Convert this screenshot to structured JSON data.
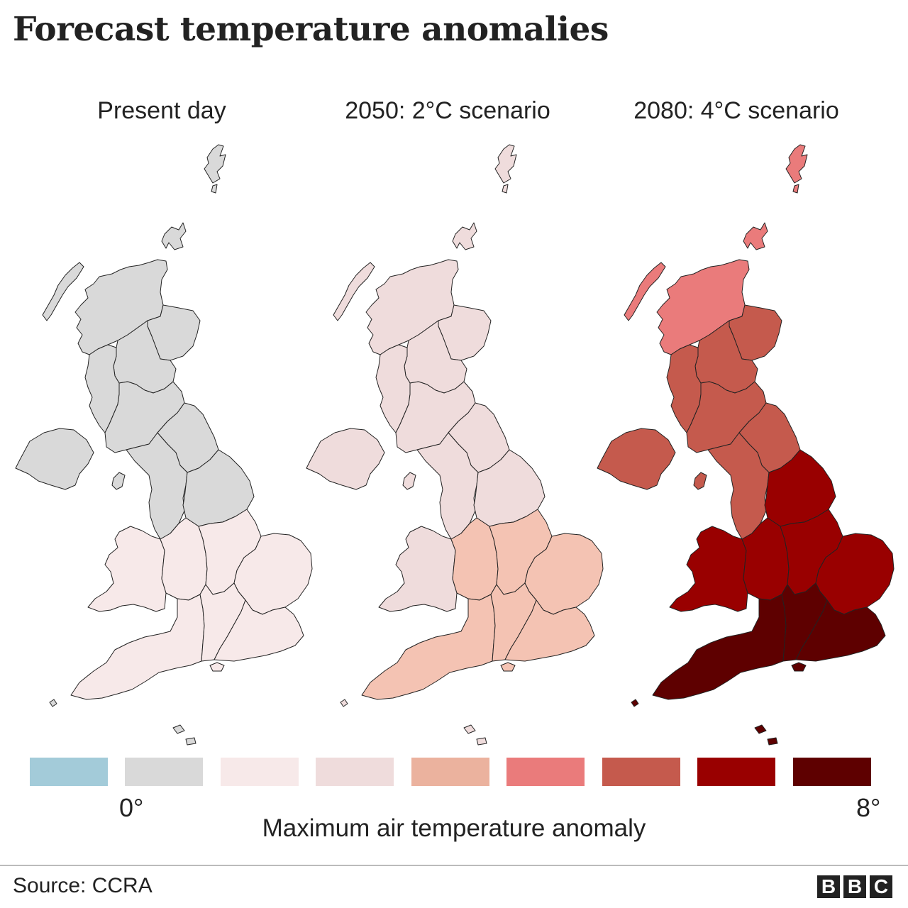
{
  "title": "Forecast temperature anomalies",
  "maps": [
    {
      "label": "Present day",
      "region_colors": {
        "shetland": "#d9d9d9",
        "orkney": "#d9d9d9",
        "hebrides": "#d9d9d9",
        "highlands": "#d9d9d9",
        "ne_scotland": "#d9d9d9",
        "e_scotland": "#d9d9d9",
        "w_scotland": "#d9d9d9",
        "s_scotland": "#d9d9d9",
        "n_ireland": "#d9d9d9",
        "isle_of_man": "#d9d9d9",
        "ne_england": "#d9d9d9",
        "nw_england": "#d9d9d9",
        "yorkshire": "#d9d9d9",
        "wales": "#f7e9e9",
        "w_midlands": "#f7e9e9",
        "e_midlands": "#f7e9e9",
        "east_england": "#f7e9e9",
        "sw_england": "#f7e9e9",
        "s_central": "#f7e9e9",
        "se_england": "#f7e9e9",
        "isle_of_wight": "#f7e9e9",
        "scilly": "#d9d9d9",
        "channel_islands": "#d9d9d9"
      }
    },
    {
      "label": "2050: 2°C scenario",
      "region_colors": {
        "shetland": "#efdcdc",
        "orkney": "#efdcdc",
        "hebrides": "#efdcdc",
        "highlands": "#efdcdc",
        "ne_scotland": "#efdcdc",
        "e_scotland": "#efdcdc",
        "w_scotland": "#efdcdc",
        "s_scotland": "#efdcdc",
        "n_ireland": "#efdcdc",
        "isle_of_man": "#efdcdc",
        "ne_england": "#efdcdc",
        "nw_england": "#efdcdc",
        "yorkshire": "#efdcdc",
        "wales": "#efdcdc",
        "w_midlands": "#f4c3b3",
        "e_midlands": "#f4c3b3",
        "east_england": "#f4c3b3",
        "sw_england": "#f4c3b3",
        "s_central": "#f4c3b3",
        "se_england": "#f4c3b3",
        "isle_of_wight": "#f4c3b3",
        "scilly": "#efdcdc",
        "channel_islands": "#efdcdc"
      }
    },
    {
      "label": "2080: 4°C scenario",
      "region_colors": {
        "shetland": "#ea7b7b",
        "orkney": "#ea7b7b",
        "hebrides": "#ea7b7b",
        "highlands": "#ea7b7b",
        "ne_scotland": "#c55a4d",
        "e_scotland": "#c55a4d",
        "w_scotland": "#c55a4d",
        "s_scotland": "#c55a4d",
        "n_ireland": "#c55a4d",
        "isle_of_man": "#c55a4d",
        "ne_england": "#c55a4d",
        "nw_england": "#c55a4d",
        "yorkshire": "#990000",
        "wales": "#990000",
        "w_midlands": "#990000",
        "e_midlands": "#990000",
        "east_england": "#990000",
        "sw_england": "#5e0000",
        "s_central": "#5e0000",
        "se_england": "#5e0000",
        "isle_of_wight": "#5e0000",
        "scilly": "#5e0000",
        "channel_islands": "#5e0000"
      }
    }
  ],
  "legend": {
    "title": "Maximum air temperature anomaly",
    "min_label": "0°",
    "max_label": "8°",
    "colors": [
      "#a3cbd9",
      "#d9d9d9",
      "#f7e9e9",
      "#efdcdc",
      "#ebb29e",
      "#ea7b7b",
      "#c55a4d",
      "#990000",
      "#5e0000"
    ]
  },
  "source": "Source: CCRA",
  "logo": [
    "B",
    "B",
    "C"
  ]
}
